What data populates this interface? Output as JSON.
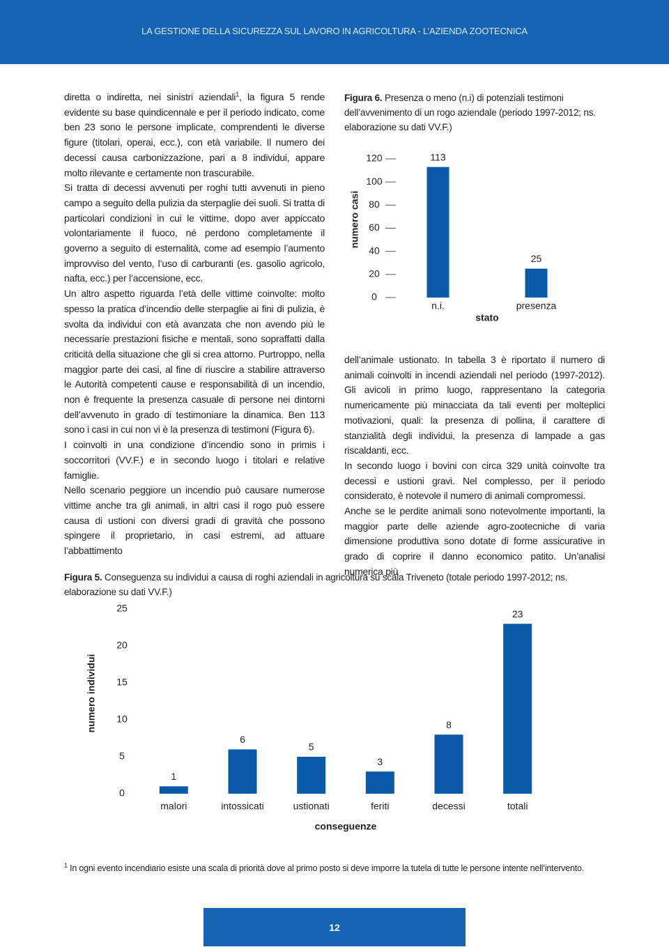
{
  "header": {
    "title": "LA GESTIONE DELLA SICUREZZA SUL LAVORO IN AGRICOLTURA - L’AZIENDA ZOOTECNICA"
  },
  "left_column": {
    "intro": {
      "text_before": "diretta o indiretta, nei sinistri aziendali",
      "footnote_ref": "1",
      "text_after": ", la figura 5 rende evidente su base quindicennale e per il periodo indicato, come ben 23 sono le persone implicate, comprendenti le diverse figure (titolari, operai, ecc.), con età variabile. Il numero dei decessi causa carbonizzazione, pari a 8 individui, appare molto rilevante e certamente non trascurabile."
    },
    "paragraphs": [
      "Si tratta di decessi avvenuti per roghi tutti avvenuti in pieno campo a seguito della pulizia da sterpaglie dei suoli. Si tratta di particolari condizioni in cui le vittime, dopo aver appiccato volontariamente il fuoco, né perdono completamente il governo a seguito di esternalità, come ad esempio l’aumento improvviso del vento, l’uso di carburanti (es. gasolio agricolo, nafta, ecc.) per l’accensione, ecc.",
      "Un altro aspetto riguarda l’età delle vittime coinvolte: molto spesso la pratica d’incendio delle sterpaglie ai fini di pulizia, è svolta da individui con età avanzata che non avendo più le necessarie prestazioni fisiche e mentali, sono sopraffatti dalla criticità della situazione che gli si crea attorno. Purtroppo, nella maggior parte dei casi, al fine di riuscire a stabilire attraverso le Autorità competenti cause e responsabilità di un incendio, non è frequente la presenza casuale di persone nei dintorni dell’avvenuto in grado di testimoniare la dinamica. Ben 113 sono i casi in cui non vi è la presenza di testimoni (Figura 6).",
      "I coinvolti in una condizione d’incendio sono in primis i soccorritori (VV.F.) e in secondo luogo i titolari e relative famiglie.",
      "Nello scenario peggiore un incendio può causare numerose vittime anche tra gli animali, in altri casi il rogo può essere causa di ustioni con diversi gradi di gravità che possono spingere il proprietario, in casi estremi, ad attuare l’abbattimento"
    ]
  },
  "right_column": {
    "paragraphs": [
      "dell’animale ustionato. In tabella 3 è riportato il numero di animali coinvolti in incendi aziendali nel periodo (1997-2012). Gli avicoli in primo luogo, rappresentano la categoria numericamente più minacciata da tali eventi per molteplici motivazioni, quali: la presenza di pollina, il carattere di stanzialità degli individui, la presenza di lampade a gas riscaldanti, ecc.",
      "In secondo luogo i bovini con circa 329 unità coinvolte tra decessi e ustioni gravi. Nel complesso, per il periodo considerato, è notevole il numero di animali compromessi.",
      "Anche se le perdite animali sono notevolmente importanti, la maggior parte delle aziende agro-zootecniche di varia dimensione produttiva sono dotate di forme assicurative in grado di coprire il danno economico patito. Un’analisi numerica più"
    ]
  },
  "chart_data": [
    {
      "type": "bar",
      "caption_label": "Figura 6.",
      "title": "Presenza o meno (n.i) di potenziali testimoni dell’avvenimento di un rogo aziendale (periodo 1997-2012; ns. elaborazione su dati VV.F.)",
      "categories": [
        "n.i.",
        "presenza"
      ],
      "values": [
        113,
        25
      ],
      "color": "#0b5aa8",
      "xlabel": "stato",
      "ylabel": "numero casi",
      "ylim": [
        0,
        120
      ],
      "yticks": [
        0,
        20,
        40,
        60,
        80,
        100,
        120
      ],
      "tick_marks": true
    },
    {
      "type": "bar",
      "caption_label": "Figura 5.",
      "title": "Conseguenza su individui a causa di roghi aziendali in agricoltura su scala Triveneto (totale periodo 1997-2012; ns. elaborazione su dati VV.F.)",
      "categories": [
        "malori",
        "intossicati",
        "ustionati",
        "feriti",
        "decessi",
        "totali"
      ],
      "values": [
        1,
        6,
        5,
        3,
        8,
        23
      ],
      "color": "#0b5aa8",
      "xlabel": "conseguenze",
      "ylabel": "numero individui",
      "ylim": [
        0,
        25
      ],
      "yticks": [
        0,
        5,
        10,
        15,
        20,
        25
      ],
      "tick_marks": false
    }
  ],
  "footnote": {
    "ref": "1",
    "text": "In ogni evento incendiario esiste una scala di priorità dove al primo posto si deve imporre la tutela di tutte le persone intente nell’intervento."
  },
  "page_number": "12"
}
